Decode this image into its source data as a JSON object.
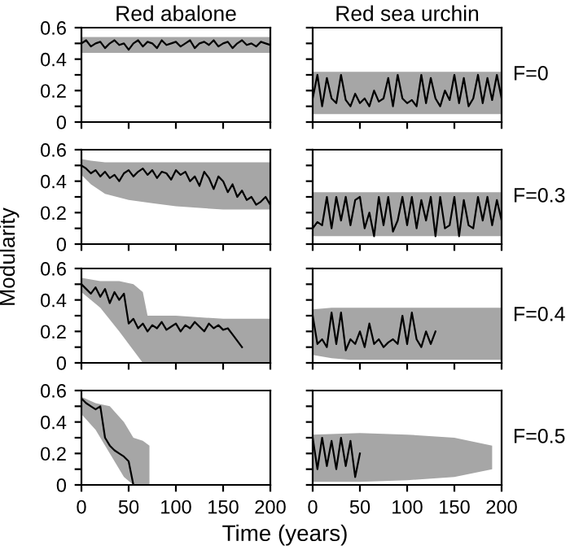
{
  "chart_data": [
    {
      "type": "line",
      "title": "Red abalone",
      "xlim": [
        0,
        200
      ],
      "ylim": [
        0,
        0.6
      ],
      "xticks": [
        0,
        50,
        100,
        150,
        200
      ],
      "yticks": [
        0,
        {
          "value": 0.1,
          "label": null
        },
        0.2,
        {
          "value": 0.3,
          "label": null
        },
        0.4,
        {
          "value": 0.5,
          "label": null
        },
        0.6
      ],
      "tick_labels": "y",
      "series": [
        {
          "color": "#a6a6a6",
          "x": [
            0,
            50,
            100,
            150,
            200
          ],
          "values": [
            null,
            null,
            null,
            null,
            null
          ],
          "upper": [
            0.54,
            0.54,
            0.54,
            0.54,
            0.54
          ],
          "lower": [
            0.44,
            0.44,
            0.44,
            0.44,
            0.44
          ]
        },
        {
          "type": "line",
          "color": "#000000",
          "x": [
            0,
            5,
            10,
            15,
            20,
            25,
            30,
            35,
            40,
            45,
            50,
            55,
            60,
            65,
            70,
            75,
            80,
            85,
            90,
            95,
            100,
            105,
            110,
            115,
            120,
            125,
            130,
            135,
            140,
            145,
            150,
            155,
            160,
            165,
            170,
            175,
            180,
            185,
            190,
            195,
            200
          ],
          "values": [
            0.5,
            0.52,
            0.48,
            0.5,
            0.51,
            0.47,
            0.5,
            0.52,
            0.49,
            0.5,
            0.46,
            0.5,
            0.52,
            0.48,
            0.51,
            0.5,
            0.47,
            0.52,
            0.49,
            0.5,
            0.51,
            0.48,
            0.5,
            0.52,
            0.47,
            0.5,
            0.51,
            0.49,
            0.52,
            0.48,
            0.5,
            0.51,
            0.47,
            0.5,
            0.52,
            0.49,
            0.5,
            0.48,
            0.51,
            0.5,
            0.49
          ]
        }
      ]
    },
    {
      "type": "line",
      "title": "Red sea urchin",
      "xlim": [
        0,
        200
      ],
      "ylim": [
        0,
        0.6
      ],
      "xticks": [
        0,
        50,
        100,
        150,
        200
      ],
      "yticks": [
        0,
        {
          "value": 0.1,
          "label": null
        },
        0.2,
        {
          "value": 0.3,
          "label": null
        },
        0.4,
        {
          "value": 0.5,
          "label": null
        },
        0.6
      ],
      "tick_labels": false,
      "annotations": [
        "F=0"
      ],
      "series": [
        {
          "color": "#a6a6a6",
          "x": [
            0,
            200
          ],
          "values": [
            null,
            null
          ],
          "upper": [
            0.32,
            0.32
          ],
          "lower": [
            0.05,
            0.05
          ]
        },
        {
          "type": "line",
          "color": "#000000",
          "x": [
            0,
            5,
            10,
            15,
            20,
            25,
            30,
            35,
            40,
            45,
            50,
            55,
            60,
            65,
            70,
            75,
            80,
            85,
            90,
            95,
            100,
            105,
            110,
            115,
            120,
            125,
            130,
            135,
            140,
            145,
            150,
            155,
            160,
            165,
            170,
            175,
            180,
            185,
            190,
            195,
            200
          ],
          "values": [
            0.15,
            0.3,
            0.1,
            0.28,
            0.15,
            0.12,
            0.3,
            0.14,
            0.1,
            0.18,
            0.12,
            0.15,
            0.1,
            0.2,
            0.13,
            0.15,
            0.28,
            0.1,
            0.3,
            0.15,
            0.12,
            0.14,
            0.1,
            0.3,
            0.12,
            0.28,
            0.15,
            0.1,
            0.2,
            0.14,
            0.3,
            0.12,
            0.28,
            0.1,
            0.15,
            0.3,
            0.12,
            0.28,
            0.14,
            0.3,
            0.15
          ]
        }
      ]
    },
    {
      "type": "line",
      "xlim": [
        0,
        200
      ],
      "ylim": [
        0,
        0.6
      ],
      "xticks": [
        0,
        50,
        100,
        150,
        200
      ],
      "yticks": [
        0,
        {
          "value": 0.1,
          "label": null
        },
        0.2,
        {
          "value": 0.3,
          "label": null
        },
        0.4,
        {
          "value": 0.5,
          "label": null
        },
        0.6
      ],
      "tick_labels": "y",
      "series": [
        {
          "color": "#a6a6a6",
          "x": [
            0,
            10,
            25,
            50,
            75,
            100,
            125,
            150,
            175,
            200
          ],
          "values": [
            null,
            null,
            null,
            null,
            null,
            null,
            null,
            null,
            null,
            null
          ],
          "upper": [
            0.54,
            0.53,
            0.52,
            0.52,
            0.52,
            0.52,
            0.52,
            0.52,
            0.52,
            0.52
          ],
          "lower": [
            0.44,
            0.38,
            0.32,
            0.28,
            0.26,
            0.24,
            0.23,
            0.22,
            0.22,
            0.22
          ]
        },
        {
          "type": "line",
          "color": "#000000",
          "x": [
            0,
            5,
            10,
            15,
            20,
            25,
            30,
            35,
            40,
            45,
            50,
            55,
            60,
            65,
            70,
            75,
            80,
            85,
            90,
            95,
            100,
            105,
            110,
            115,
            120,
            125,
            130,
            135,
            140,
            145,
            150,
            155,
            160,
            165,
            170,
            175,
            180,
            185,
            190,
            195,
            200
          ],
          "values": [
            0.5,
            0.48,
            0.45,
            0.47,
            0.43,
            0.46,
            0.42,
            0.44,
            0.4,
            0.45,
            0.47,
            0.43,
            0.46,
            0.48,
            0.44,
            0.47,
            0.42,
            0.46,
            0.45,
            0.41,
            0.47,
            0.44,
            0.46,
            0.4,
            0.43,
            0.37,
            0.46,
            0.42,
            0.35,
            0.43,
            0.4,
            0.33,
            0.38,
            0.3,
            0.34,
            0.28,
            0.3,
            0.25,
            0.27,
            0.3,
            0.25
          ]
        }
      ]
    },
    {
      "type": "line",
      "xlim": [
        0,
        200
      ],
      "ylim": [
        0,
        0.6
      ],
      "xticks": [
        0,
        50,
        100,
        150,
        200
      ],
      "yticks": [
        0,
        {
          "value": 0.1,
          "label": null
        },
        0.2,
        {
          "value": 0.3,
          "label": null
        },
        0.4,
        {
          "value": 0.5,
          "label": null
        },
        0.6
      ],
      "tick_labels": false,
      "annotations": [
        "F=0.3"
      ],
      "series": [
        {
          "color": "#a6a6a6",
          "x": [
            0,
            200
          ],
          "values": [
            null,
            null
          ],
          "upper": [
            0.33,
            0.33
          ],
          "lower": [
            0.05,
            0.05
          ]
        },
        {
          "type": "line",
          "color": "#000000",
          "x": [
            0,
            5,
            10,
            15,
            20,
            25,
            30,
            35,
            40,
            45,
            50,
            55,
            60,
            65,
            70,
            75,
            80,
            85,
            90,
            95,
            100,
            105,
            110,
            115,
            120,
            125,
            130,
            135,
            140,
            145,
            150,
            155,
            160,
            165,
            170,
            175,
            180,
            185,
            190,
            195,
            200
          ],
          "values": [
            0.1,
            0.14,
            0.12,
            0.3,
            0.1,
            0.3,
            0.15,
            0.3,
            0.12,
            0.28,
            0.3,
            0.1,
            0.2,
            0.05,
            0.3,
            0.12,
            0.3,
            0.08,
            0.15,
            0.3,
            0.12,
            0.3,
            0.1,
            0.28,
            0.15,
            0.3,
            0.05,
            0.3,
            0.1,
            0.12,
            0.3,
            0.05,
            0.28,
            0.12,
            0.1,
            0.3,
            0.15,
            0.3,
            0.12,
            0.28,
            0.15
          ]
        }
      ]
    },
    {
      "type": "line",
      "ylabel": "Modularity",
      "xlim": [
        0,
        200
      ],
      "ylim": [
        0,
        0.6
      ],
      "xticks": [
        0,
        50,
        100,
        150,
        200
      ],
      "yticks": [
        0,
        {
          "value": 0.1,
          "label": null
        },
        0.2,
        {
          "value": 0.3,
          "label": null
        },
        0.4,
        {
          "value": 0.5,
          "label": null
        },
        0.6
      ],
      "tick_labels": "y",
      "series": [
        {
          "color": "#a6a6a6",
          "x": [
            0,
            20,
            40,
            55,
            65,
            70,
            100,
            150,
            200
          ],
          "values": [
            null,
            null,
            null,
            null,
            null,
            null,
            null,
            null,
            null
          ],
          "upper": [
            0.54,
            0.52,
            0.52,
            0.5,
            0.45,
            0.3,
            0.3,
            0.28,
            0.28
          ],
          "lower": [
            0.45,
            0.35,
            0.2,
            0.08,
            0,
            0,
            0,
            0,
            0
          ]
        },
        {
          "type": "line",
          "color": "#000000",
          "x": [
            0,
            5,
            10,
            15,
            20,
            25,
            30,
            35,
            40,
            45,
            50,
            55,
            60,
            65,
            70,
            75,
            80,
            85,
            90,
            95,
            100,
            105,
            110,
            115,
            120,
            125,
            130,
            135,
            140,
            145,
            150,
            155,
            160,
            165,
            170
          ],
          "values": [
            0.5,
            0.47,
            0.44,
            0.48,
            0.42,
            0.47,
            0.38,
            0.45,
            0.4,
            0.44,
            0.25,
            0.28,
            0.22,
            0.25,
            0.2,
            0.24,
            0.22,
            0.26,
            0.21,
            0.23,
            0.25,
            0.2,
            0.24,
            0.22,
            0.26,
            0.23,
            0.2,
            0.25,
            0.22,
            0.24,
            0.21,
            0.22,
            0.18,
            0.14,
            0.1
          ]
        }
      ]
    },
    {
      "type": "line",
      "xlim": [
        0,
        200
      ],
      "ylim": [
        0,
        0.6
      ],
      "xticks": [
        0,
        50,
        100,
        150,
        200
      ],
      "yticks": [
        0,
        {
          "value": 0.1,
          "label": null
        },
        0.2,
        {
          "value": 0.3,
          "label": null
        },
        0.4,
        {
          "value": 0.5,
          "label": null
        },
        0.6
      ],
      "tick_labels": false,
      "annotations": [
        "F=0.4"
      ],
      "series": [
        {
          "color": "#a6a6a6",
          "x": [
            0,
            20,
            40,
            200
          ],
          "values": [
            null,
            null,
            null,
            null
          ],
          "upper": [
            0.34,
            0.35,
            0.35,
            0.35
          ],
          "lower": [
            0.05,
            0.03,
            0.02,
            0.02
          ]
        },
        {
          "type": "line",
          "color": "#000000",
          "x": [
            0,
            5,
            10,
            15,
            20,
            25,
            30,
            35,
            40,
            45,
            50,
            55,
            60,
            65,
            70,
            75,
            80,
            85,
            90,
            95,
            100,
            105,
            110,
            115,
            120,
            125,
            130
          ],
          "values": [
            0.3,
            0.12,
            0.15,
            0.1,
            0.32,
            0.12,
            0.32,
            0.08,
            0.15,
            0.12,
            0.2,
            0.1,
            0.25,
            0.12,
            0.15,
            0.1,
            0.13,
            0.15,
            0.12,
            0.3,
            0.12,
            0.32,
            0.15,
            0.1,
            0.2,
            0.12,
            0.2
          ]
        }
      ]
    },
    {
      "type": "line",
      "xlabel": "Time (years)",
      "xlim": [
        0,
        200
      ],
      "ylim": [
        0,
        0.6
      ],
      "xticks": [
        0,
        50,
        100,
        150,
        200
      ],
      "yticks": [
        0,
        {
          "value": 0.1,
          "label": null
        },
        0.2,
        {
          "value": 0.3,
          "label": null
        },
        0.4,
        {
          "value": 0.5,
          "label": null
        },
        0.6
      ],
      "series": [
        {
          "color": "#a6a6a6",
          "x": [
            0,
            15,
            30,
            45,
            55,
            65,
            72
          ],
          "values": [
            null,
            null,
            null,
            null,
            null,
            null,
            null
          ],
          "upper": [
            0.56,
            0.52,
            0.5,
            0.4,
            0.3,
            0.28,
            0.25
          ],
          "lower": [
            0.45,
            0.35,
            0.2,
            0.05,
            0,
            0,
            0
          ]
        },
        {
          "type": "line",
          "color": "#000000",
          "x": [
            0,
            5,
            10,
            15,
            20,
            25,
            30,
            35,
            40,
            45,
            50,
            55
          ],
          "values": [
            0.55,
            0.52,
            0.5,
            0.48,
            0.5,
            0.3,
            0.25,
            0.22,
            0.2,
            0.18,
            0.15,
            0
          ]
        }
      ]
    },
    {
      "type": "line",
      "xlim": [
        0,
        200
      ],
      "ylim": [
        0,
        0.6
      ],
      "xticks": [
        0,
        50,
        100,
        150,
        200
      ],
      "yticks": [
        0,
        {
          "value": 0.1,
          "label": null
        },
        0.2,
        {
          "value": 0.3,
          "label": null
        },
        0.4,
        {
          "value": 0.5,
          "label": null
        },
        0.6
      ],
      "tick_labels": "x",
      "annotations": [
        "F=0.5"
      ],
      "series": [
        {
          "color": "#a6a6a6",
          "x": [
            0,
            50,
            100,
            150,
            190
          ],
          "values": [
            null,
            null,
            null,
            null,
            null
          ],
          "upper": [
            0.32,
            0.33,
            0.32,
            0.3,
            0.25
          ],
          "lower": [
            0.02,
            0.02,
            0.03,
            0.05,
            0.1
          ]
        },
        {
          "type": "line",
          "color": "#000000",
          "x": [
            0,
            5,
            10,
            15,
            20,
            25,
            30,
            35,
            40,
            45,
            50
          ],
          "values": [
            0.3,
            0.1,
            0.3,
            0.12,
            0.28,
            0.1,
            0.3,
            0.12,
            0.28,
            0.05,
            0.2
          ]
        }
      ]
    }
  ]
}
